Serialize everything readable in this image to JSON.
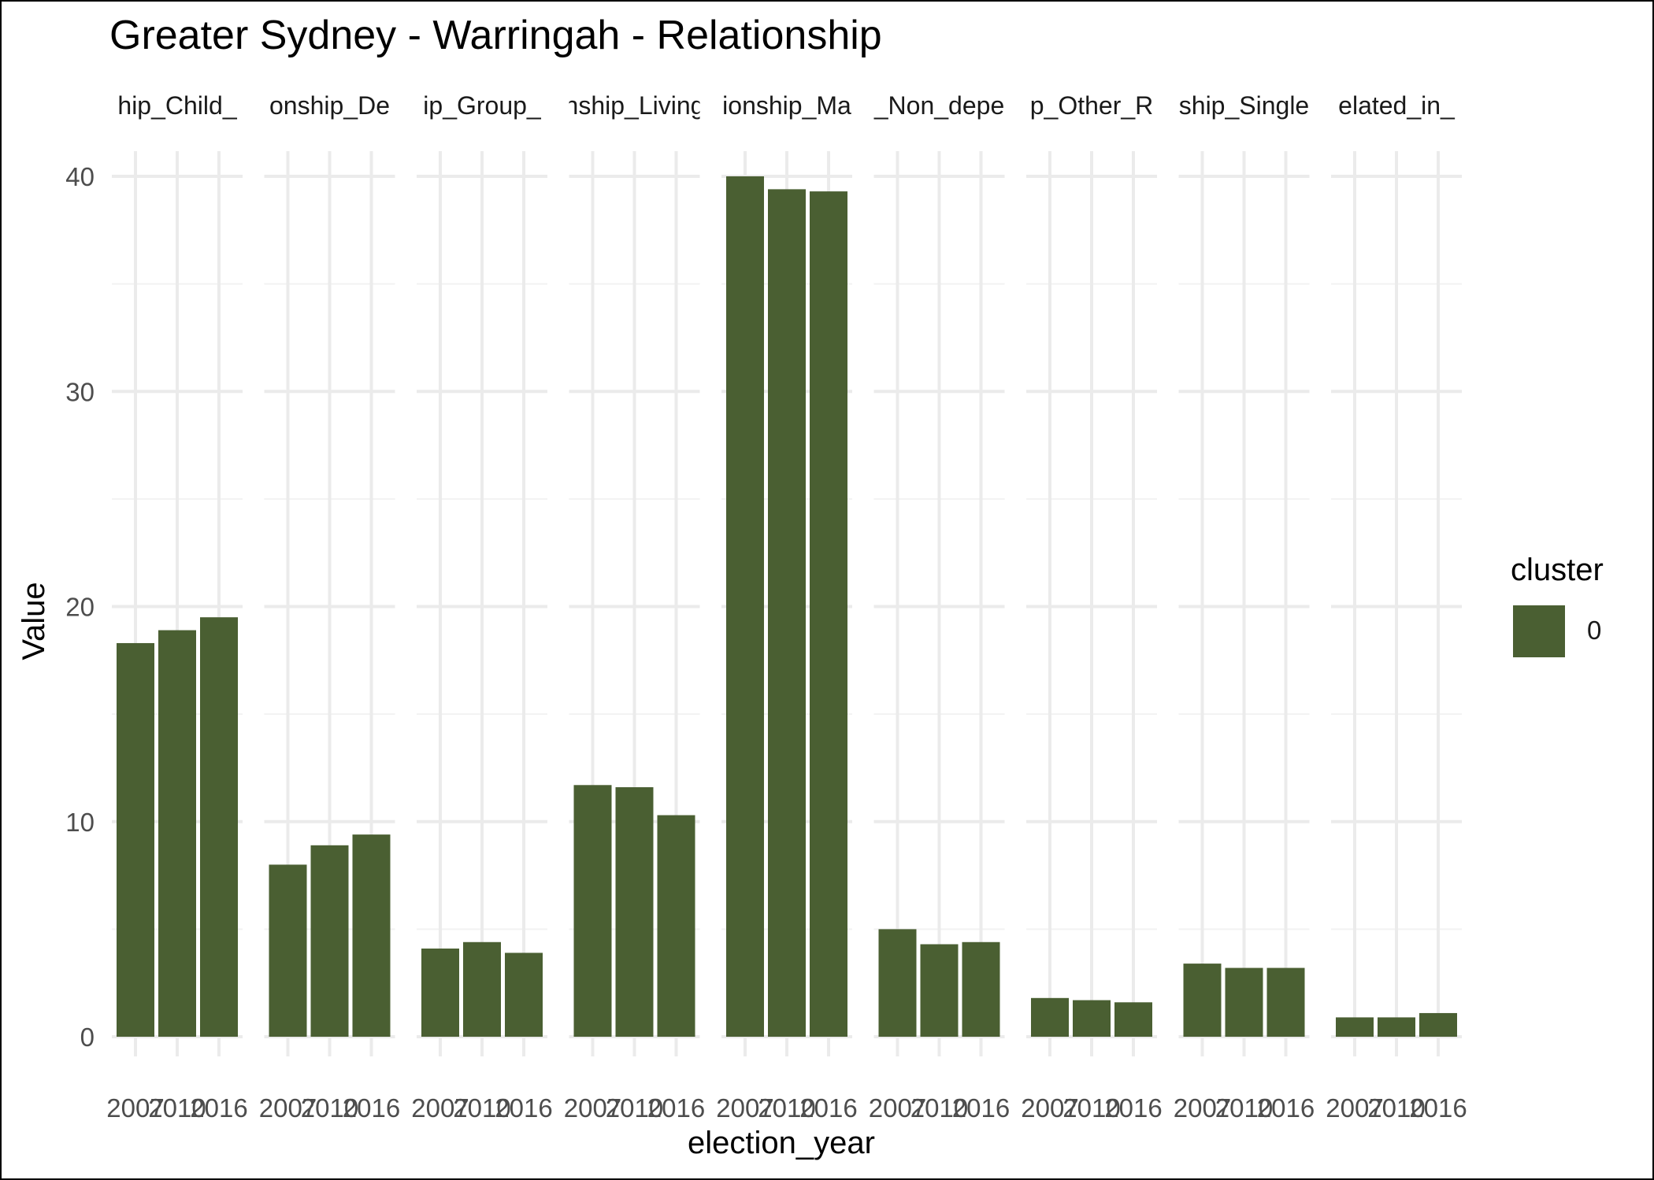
{
  "chart_data": {
    "type": "bar",
    "title": "Greater Sydney - Warringah - Relationship",
    "xlabel": "election_year",
    "ylabel": "Value",
    "ylim": [
      0,
      42
    ],
    "yticks": [
      0,
      10,
      20,
      30,
      40
    ],
    "grid": true,
    "legend": {
      "title": "cluster",
      "position": "right",
      "entries": [
        {
          "label": "0",
          "color": "#4a5f32"
        }
      ]
    },
    "bar_color": "#4a5f32",
    "categories": [
      "2007",
      "2010",
      "2016"
    ],
    "facets": [
      {
        "label": "hip_Child_",
        "values": [
          18.3,
          18.9,
          19.5
        ]
      },
      {
        "label": "onship_De",
        "values": [
          8.0,
          8.9,
          9.4
        ]
      },
      {
        "label": "ip_Group_",
        "values": [
          4.1,
          4.4,
          3.9
        ]
      },
      {
        "label": "nship_Living",
        "values": [
          11.7,
          11.6,
          10.3
        ]
      },
      {
        "label": "ionship_Ma",
        "values": [
          40.0,
          39.4,
          39.3
        ]
      },
      {
        "label": "_Non_depe",
        "values": [
          5.0,
          4.3,
          4.4
        ]
      },
      {
        "label": "p_Other_R",
        "values": [
          1.8,
          1.7,
          1.6
        ]
      },
      {
        "label": "ship_Single",
        "values": [
          3.4,
          3.2,
          3.2
        ]
      },
      {
        "label": "elated_in_",
        "values": [
          0.9,
          0.9,
          1.1
        ]
      }
    ]
  }
}
